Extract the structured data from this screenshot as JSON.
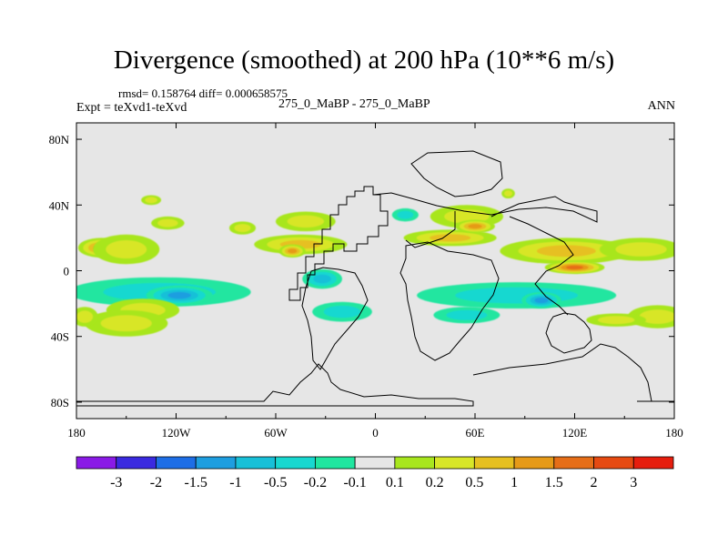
{
  "chart_data": {
    "type": "heatmap",
    "title": "Divergence (smoothed) at 200 hPa (10**6 m/s)",
    "stats": "rmsd= 0.158764  diff= 0.000658575",
    "left_label": "Expt = teXvd1-teXvd",
    "center_label": "275_0_MaBP - 275_0_MaBP",
    "right_label": "ANN",
    "x_range": [
      -180,
      180
    ],
    "y_range": [
      -90,
      90
    ],
    "x_ticks": [
      {
        "value": -180,
        "label": "180"
      },
      {
        "value": -120,
        "label": "120W"
      },
      {
        "value": -60,
        "label": "60W"
      },
      {
        "value": 0,
        "label": "0"
      },
      {
        "value": 60,
        "label": "60E"
      },
      {
        "value": 120,
        "label": "120E"
      },
      {
        "value": 180,
        "label": "180"
      }
    ],
    "y_ticks": [
      {
        "value": 80,
        "label": "80N"
      },
      {
        "value": 40,
        "label": "40N"
      },
      {
        "value": 0,
        "label": "0"
      },
      {
        "value": -40,
        "label": "40S"
      },
      {
        "value": -80,
        "label": "80S"
      }
    ],
    "colorbar": {
      "colors": [
        "#8a1ae6",
        "#3a2ae0",
        "#1e6ee6",
        "#1e9ee0",
        "#18c0d8",
        "#18d8d0",
        "#20e6a0",
        "#e6e6e6",
        "#a8e61e",
        "#d8e628",
        "#e6c020",
        "#e69a18",
        "#e66e18",
        "#e64a12",
        "#e61e0e"
      ],
      "labels": [
        "-3",
        "-2",
        "-1.5",
        "-1",
        "-0.5",
        "-0.2",
        "-0.1",
        "0.1",
        "0.2",
        "0.5",
        "1",
        "1.5",
        "2",
        "3"
      ]
    },
    "field_blobs": [
      {
        "lon": -165,
        "lat": 14,
        "rlon": 14,
        "rlat": 6,
        "level": 1
      },
      {
        "lon": -150,
        "lat": 13,
        "rlon": 20,
        "rlat": 9,
        "level": 0.4
      },
      {
        "lon": -125,
        "lat": 29,
        "rlon": 10,
        "rlat": 4,
        "level": 0.3
      },
      {
        "lon": -135,
        "lat": 43,
        "rlon": 6,
        "rlat": 3,
        "level": 0.2
      },
      {
        "lon": -80,
        "lat": 26,
        "rlon": 8,
        "rlat": 4,
        "level": 0.4
      },
      {
        "lon": -42,
        "lat": 30,
        "rlon": 18,
        "rlat": 6,
        "level": 0.3
      },
      {
        "lon": -45,
        "lat": 16,
        "rlon": 28,
        "rlat": 6,
        "level": 0.5
      },
      {
        "lon": -50,
        "lat": 12,
        "rlon": 8,
        "rlat": 4,
        "level": 1
      },
      {
        "lon": -130,
        "lat": -13,
        "rlon": 55,
        "rlat": 9,
        "level": -0.4
      },
      {
        "lon": -118,
        "lat": -15,
        "rlon": 20,
        "rlat": 6,
        "level": -1
      },
      {
        "lon": -140,
        "lat": -24,
        "rlon": 22,
        "rlat": 7,
        "level": 0.4
      },
      {
        "lon": -150,
        "lat": -32,
        "rlon": 25,
        "rlat": 8,
        "level": 0.3
      },
      {
        "lon": -175,
        "lat": -28,
        "rlon": 8,
        "rlat": 6,
        "level": 0.4
      },
      {
        "lon": -20,
        "lat": -25,
        "rlon": 18,
        "rlat": 6,
        "level": -0.3
      },
      {
        "lon": -32,
        "lat": -5,
        "rlon": 12,
        "rlat": 6,
        "level": -0.5
      },
      {
        "lon": 18,
        "lat": 34,
        "rlon": 8,
        "rlat": 4,
        "level": -0.2
      },
      {
        "lon": 55,
        "lat": 33,
        "rlon": 22,
        "rlat": 7,
        "level": 0.4
      },
      {
        "lon": 45,
        "lat": 20,
        "rlon": 28,
        "rlat": 5,
        "level": 0.5
      },
      {
        "lon": 60,
        "lat": 27,
        "rlon": 12,
        "rlat": 4,
        "level": 1
      },
      {
        "lon": 115,
        "lat": 12,
        "rlon": 40,
        "rlat": 8,
        "level": 0.6
      },
      {
        "lon": 120,
        "lat": 2,
        "rlon": 18,
        "rlat": 4,
        "level": 1.5
      },
      {
        "lon": 160,
        "lat": 13,
        "rlon": 25,
        "rlat": 7,
        "level": 0.4
      },
      {
        "lon": 85,
        "lat": -15,
        "rlon": 60,
        "rlat": 8,
        "level": -0.4
      },
      {
        "lon": 100,
        "lat": -18,
        "rlon": 12,
        "rlat": 5,
        "level": -1
      },
      {
        "lon": 55,
        "lat": -27,
        "rlon": 20,
        "rlat": 5,
        "level": -0.2
      },
      {
        "lon": 170,
        "lat": -28,
        "rlon": 18,
        "rlat": 7,
        "level": 0.4
      },
      {
        "lon": 145,
        "lat": -30,
        "rlon": 18,
        "rlat": 4,
        "level": 0.3
      },
      {
        "lon": 80,
        "lat": 47,
        "rlon": 4,
        "rlat": 3,
        "level": 0.3
      }
    ]
  }
}
